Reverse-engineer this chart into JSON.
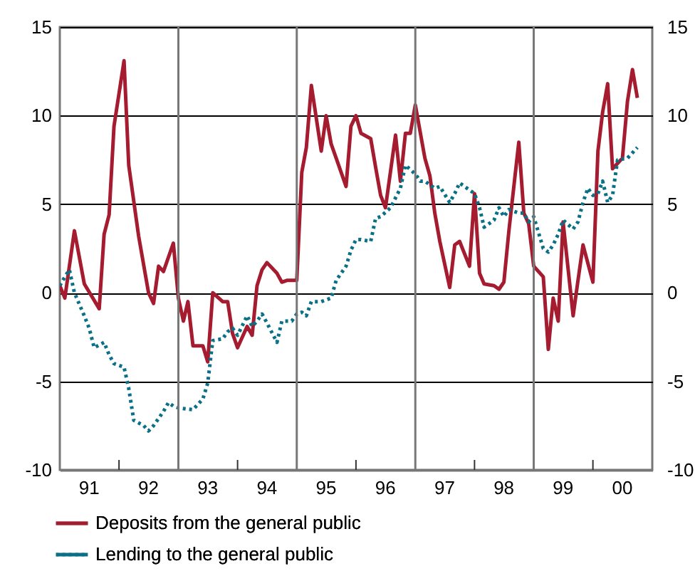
{
  "chart_data": {
    "type": "line",
    "xlim": [
      "1991-01-01",
      "2001-01-01"
    ],
    "xticks": [
      {
        "value": "1991-07-01",
        "label": "91"
      },
      {
        "value": "1992-07-01",
        "label": "92"
      },
      {
        "value": "1993-07-01",
        "label": "93"
      },
      {
        "value": "1994-07-01",
        "label": "94"
      },
      {
        "value": "1995-07-01",
        "label": "95"
      },
      {
        "value": "1996-07-01",
        "label": "96"
      },
      {
        "value": "1997-07-01",
        "label": "97"
      },
      {
        "value": "1998-07-01",
        "label": "98"
      },
      {
        "value": "1999-07-01",
        "label": "99"
      },
      {
        "value": "2000-07-01",
        "label": "00"
      },
      {
        "value": "1992-01-01",
        "label": null
      },
      {
        "value": "1994-01-01",
        "label": null
      },
      {
        "value": "1996-01-01",
        "label": null
      },
      {
        "value": "1998-01-01",
        "label": null
      },
      {
        "value": "2000-01-01",
        "label": null
      }
    ],
    "ylim": [
      -10,
      15
    ],
    "yticks": [
      -10,
      -5,
      0,
      5,
      10,
      15
    ],
    "y2lim": [
      -10,
      15
    ],
    "y2ticks": [
      -10,
      -5,
      0,
      5,
      10,
      15
    ],
    "grid": "y",
    "legend": "bottom",
    "ref_lines": [
      {
        "axis": "x",
        "value": "1993-01-01",
        "label": null,
        "color": "#777777"
      },
      {
        "axis": "x",
        "value": "1995-01-01",
        "label": null,
        "color": "#777777"
      },
      {
        "axis": "x",
        "value": "1997-01-01",
        "label": null,
        "color": "#777777"
      },
      {
        "axis": "x",
        "value": "1999-01-01",
        "label": null,
        "color": "#777777"
      }
    ],
    "series": [
      {
        "name": "Deposits from the general public",
        "color": "#a51c30",
        "line_style": "solid",
        "x": [
          "1991-01",
          "1991-02",
          "1991-04",
          "1991-06",
          "1991-09",
          "1991-10",
          "1991-11",
          "1991-12",
          "1992-02",
          "1992-03",
          "1992-05",
          "1992-07",
          "1992-08",
          "1992-09",
          "1992-10",
          "1992-12",
          "1993-01",
          "1993-02",
          "1993-03",
          "1993-04",
          "1993-06",
          "1993-07",
          "1993-08",
          "1993-10",
          "1993-11",
          "1993-12",
          "1994-01",
          "1994-03",
          "1994-04",
          "1994-05",
          "1994-06",
          "1994-07",
          "1994-09",
          "1994-10",
          "1994-11",
          "1995-01",
          "1995-02",
          "1995-03",
          "1995-04",
          "1995-06",
          "1995-07",
          "1995-08",
          "1995-09",
          "1995-11",
          "1995-12",
          "1996-01",
          "1996-02",
          "1996-04",
          "1996-05",
          "1996-06",
          "1996-07",
          "1996-09",
          "1996-10",
          "1996-11",
          "1996-12",
          "1997-01",
          "1997-03",
          "1997-04",
          "1997-05",
          "1997-06",
          "1997-08",
          "1997-09",
          "1997-10",
          "1997-12",
          "1998-01",
          "1998-02",
          "1998-03",
          "1998-05",
          "1998-06",
          "1998-07",
          "1998-08",
          "1998-10",
          "1998-11",
          "1998-12",
          "1999-01",
          "1999-03",
          "1999-04",
          "1999-05",
          "1999-06",
          "1999-07",
          "1999-09",
          "1999-10",
          "1999-11",
          "2000-01",
          "2000-02",
          "2000-03",
          "2000-04",
          "2000-05",
          "2000-07",
          "2000-08",
          "2000-09",
          "2000-10"
        ],
        "values": [
          0.4,
          -0.3,
          3.5,
          0.5,
          -0.9,
          3.3,
          4.4,
          9.4,
          13.1,
          7.2,
          3.2,
          0.0,
          -0.6,
          1.5,
          1.2,
          2.8,
          -0.3,
          -1.6,
          -0.5,
          -3.0,
          -3.0,
          -3.9,
          0.0,
          -0.5,
          -0.5,
          -2.3,
          -3.1,
          -1.9,
          -2.4,
          0.4,
          1.3,
          1.7,
          1.1,
          0.6,
          0.7,
          0.7,
          6.8,
          8.2,
          11.7,
          8.0,
          10.0,
          8.4,
          7.6,
          6.0,
          9.4,
          10.0,
          9.0,
          8.7,
          7.1,
          5.5,
          4.8,
          8.9,
          6.3,
          9.0,
          9.0,
          10.6,
          7.6,
          6.6,
          4.5,
          2.9,
          0.3,
          2.7,
          2.9,
          1.5,
          5.6,
          1.1,
          0.5,
          0.4,
          0.2,
          0.6,
          3.5,
          8.5,
          4.5,
          3.9,
          1.5,
          0.9,
          -3.2,
          -0.3,
          -1.6,
          4.0,
          -1.3,
          0.7,
          2.7,
          0.6,
          8.0,
          10.2,
          11.8,
          7.0,
          7.6,
          10.8,
          12.6,
          11.0
        ]
      },
      {
        "name": "Lending to the general public",
        "color": "#0a7086",
        "line_style": "dotted",
        "x": [
          "1991-01",
          "1991-02",
          "1991-03",
          "1991-04",
          "1991-06",
          "1991-07",
          "1991-08",
          "1991-10",
          "1991-11",
          "1991-12",
          "1992-02",
          "1992-03",
          "1992-04",
          "1992-06",
          "1992-07",
          "1992-08",
          "1992-10",
          "1992-11",
          "1992-12",
          "1993-01",
          "1993-04",
          "1993-06",
          "1993-07",
          "1993-08",
          "1993-10",
          "1993-11",
          "1993-12",
          "1994-01",
          "1994-03",
          "1994-04",
          "1994-05",
          "1994-06",
          "1994-07",
          "1994-09",
          "1994-10",
          "1994-12",
          "1995-01",
          "1995-02",
          "1995-03",
          "1995-04",
          "1995-06",
          "1995-08",
          "1995-09",
          "1995-11",
          "1995-12",
          "1996-01",
          "1996-02",
          "1996-04",
          "1996-05",
          "1996-06",
          "1996-08",
          "1996-10",
          "1996-11",
          "1997-01",
          "1997-02",
          "1997-03",
          "1997-05",
          "1997-06",
          "1997-08",
          "1997-09",
          "1997-10",
          "1997-12",
          "1998-01",
          "1998-02",
          "1998-03",
          "1998-05",
          "1998-06",
          "1998-07",
          "1998-08",
          "1998-10",
          "1998-11",
          "1998-12",
          "1999-01",
          "1999-03",
          "1999-04",
          "1999-05",
          "1999-06",
          "1999-07",
          "1999-09",
          "1999-10",
          "1999-11",
          "1999-12",
          "2000-01",
          "2000-02",
          "2000-03",
          "2000-04",
          "2000-05",
          "2000-06",
          "2000-08",
          "2000-09",
          "2000-10"
        ],
        "values": [
          0.4,
          0.9,
          1.3,
          0.0,
          -1.3,
          -2.0,
          -3.1,
          -2.8,
          -3.5,
          -4.0,
          -4.2,
          -5.4,
          -7.2,
          -7.5,
          -7.8,
          -7.5,
          -6.7,
          -6.2,
          -6.4,
          -6.5,
          -6.6,
          -6.0,
          -5.1,
          -2.7,
          -2.6,
          -2.2,
          -2.0,
          -2.4,
          -1.3,
          -1.9,
          -1.6,
          -1.2,
          -1.7,
          -2.8,
          -1.6,
          -1.6,
          -1.2,
          -1.1,
          -1.3,
          -0.5,
          -0.5,
          -0.3,
          0.7,
          1.5,
          2.4,
          3.0,
          3.0,
          2.9,
          4.2,
          4.3,
          4.8,
          5.9,
          7.2,
          6.7,
          6.3,
          6.3,
          5.9,
          6.0,
          5.1,
          5.6,
          6.2,
          5.8,
          5.6,
          4.8,
          3.7,
          4.1,
          4.8,
          4.3,
          4.7,
          4.5,
          4.5,
          4.0,
          4.3,
          2.5,
          2.3,
          2.7,
          3.3,
          4.1,
          3.6,
          4.0,
          5.1,
          5.9,
          5.5,
          5.6,
          6.3,
          5.1,
          5.5,
          7.5,
          7.6,
          7.9,
          8.2
        ]
      }
    ]
  }
}
